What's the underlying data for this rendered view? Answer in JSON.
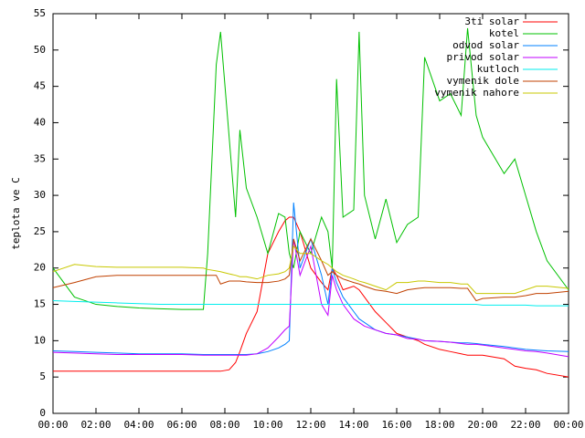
{
  "chart_data": {
    "type": "line",
    "ylabel": "teplota ve C",
    "xlim": [
      0,
      24
    ],
    "ylim": [
      0,
      55
    ],
    "yticks": [
      0,
      5,
      10,
      15,
      20,
      25,
      30,
      35,
      40,
      45,
      50,
      55
    ],
    "xticks": [
      {
        "value": 0,
        "label": "00:00"
      },
      {
        "value": 2,
        "label": "02:00"
      },
      {
        "value": 4,
        "label": "04:00"
      },
      {
        "value": 6,
        "label": "06:00"
      },
      {
        "value": 8,
        "label": "08:00"
      },
      {
        "value": 10,
        "label": "10:00"
      },
      {
        "value": 12,
        "label": "12:00"
      },
      {
        "value": 14,
        "label": "14:00"
      },
      {
        "value": 16,
        "label": "16:00"
      },
      {
        "value": 18,
        "label": "18:00"
      },
      {
        "value": 20,
        "label": "20:00"
      },
      {
        "value": 22,
        "label": "22:00"
      },
      {
        "value": 24,
        "label": "00:00"
      }
    ],
    "legend": "top-right",
    "x": [
      0,
      1,
      2,
      3,
      4,
      5,
      6,
      7,
      7.2,
      7.6,
      7.8,
      8.2,
      8.5,
      8.7,
      9,
      9.5,
      10,
      10.5,
      10.8,
      11,
      11.2,
      11.5,
      12,
      12.5,
      12.8,
      13,
      13.2,
      13.5,
      14,
      14.25,
      14.5,
      15,
      15.5,
      16,
      16.5,
      17,
      17.3,
      18,
      18.5,
      19,
      19.3,
      19.7,
      20,
      21,
      21.5,
      22,
      22.5,
      23,
      24
    ],
    "series": [
      {
        "name": "3ti solar",
        "color": "#ff0000",
        "values": [
          5.8,
          5.8,
          5.8,
          5.8,
          5.8,
          5.8,
          5.8,
          5.8,
          5.8,
          5.8,
          5.8,
          6,
          7,
          8.5,
          11,
          14,
          22,
          25,
          26.5,
          27,
          27,
          25,
          20,
          18,
          17,
          20,
          19,
          17,
          17.5,
          17,
          16,
          14,
          12.5,
          11,
          10.5,
          10,
          9.5,
          8.8,
          8.5,
          8.2,
          8,
          8,
          8,
          7.5,
          6.5,
          6.2,
          6,
          5.5,
          5
        ]
      },
      {
        "name": "kotel",
        "color": "#00c000",
        "values": [
          20,
          16,
          15,
          14.7,
          14.5,
          14.4,
          14.3,
          14.3,
          22,
          48,
          52.5,
          38,
          27,
          39,
          31,
          27,
          22,
          27.5,
          27,
          22,
          20,
          25,
          22,
          27,
          25,
          20,
          46,
          27,
          28,
          52.5,
          30,
          24,
          29.5,
          23.5,
          26,
          27,
          49,
          43,
          44,
          41,
          53,
          41,
          38,
          33,
          35,
          30,
          25,
          21,
          17
        ]
      },
      {
        "name": "odvod solar",
        "color": "#0080ff",
        "values": [
          8.6,
          8.5,
          8.4,
          8.3,
          8.2,
          8.2,
          8.2,
          8.1,
          8.1,
          8.1,
          8.1,
          8.1,
          8.1,
          8.1,
          8.1,
          8.2,
          8.5,
          9,
          9.5,
          10,
          29,
          20,
          24,
          19,
          15,
          20,
          18,
          16,
          14,
          13,
          12.5,
          11.5,
          11,
          10.8,
          10.5,
          10.2,
          10,
          9.9,
          9.8,
          9.7,
          9.7,
          9.6,
          9.5,
          9.2,
          9,
          8.8,
          8.7,
          8.6,
          8.5
        ]
      },
      {
        "name": "privod solar",
        "color": "#c000ff",
        "values": [
          8.4,
          8.3,
          8.2,
          8.1,
          8.1,
          8.1,
          8.1,
          8,
          8,
          8,
          8,
          8,
          8,
          8,
          8,
          8.2,
          9,
          10.5,
          11.5,
          12,
          24,
          19,
          23,
          15,
          13.5,
          19,
          17,
          15,
          13,
          12.5,
          12,
          11.5,
          11,
          10.8,
          10.3,
          10.2,
          10,
          9.9,
          9.8,
          9.6,
          9.5,
          9.5,
          9.4,
          9,
          8.8,
          8.6,
          8.5,
          8.3,
          7.8
        ]
      },
      {
        "name": "kutloch",
        "color": "#00eeee",
        "values": [
          15.5,
          15.4,
          15.3,
          15.2,
          15.1,
          15,
          15,
          15,
          15,
          15,
          15,
          15,
          15,
          15,
          15,
          15,
          15,
          15,
          15,
          15,
          15,
          15,
          15,
          15,
          15,
          15,
          15,
          15,
          15,
          15,
          15,
          15,
          15,
          15,
          15,
          15,
          15,
          15,
          15,
          15,
          15,
          15,
          14.9,
          14.9,
          14.9,
          14.9,
          14.8,
          14.8,
          14.8
        ]
      },
      {
        "name": "vymenik dole",
        "color": "#c04000",
        "values": [
          17.3,
          18,
          18.8,
          19,
          19,
          19,
          19,
          19,
          19,
          19,
          17.8,
          18.2,
          18.2,
          18.2,
          18.1,
          18,
          18,
          18.2,
          18.5,
          19,
          24,
          21,
          24,
          21,
          19,
          19.5,
          19,
          18.5,
          18,
          17.8,
          17.5,
          17,
          16.8,
          16.5,
          17,
          17.2,
          17.3,
          17.3,
          17.3,
          17.2,
          17.2,
          15.5,
          15.8,
          16,
          16,
          16.2,
          16.5,
          16.5,
          16.8
        ]
      },
      {
        "name": "vymenik nahore",
        "color": "#c8c800",
        "values": [
          19.5,
          20.5,
          20.2,
          20.1,
          20.1,
          20.1,
          20.1,
          20,
          19.8,
          19.6,
          19.5,
          19.2,
          19,
          18.8,
          18.8,
          18.5,
          19,
          19.2,
          19.5,
          20,
          23,
          22,
          22,
          21,
          20.5,
          20,
          19.5,
          19,
          18.5,
          18.2,
          18,
          17.5,
          17,
          18,
          18,
          18.2,
          18.2,
          18,
          18,
          17.8,
          17.8,
          16.5,
          16.5,
          16.5,
          16.5,
          17,
          17.5,
          17.5,
          17.2
        ]
      }
    ]
  }
}
